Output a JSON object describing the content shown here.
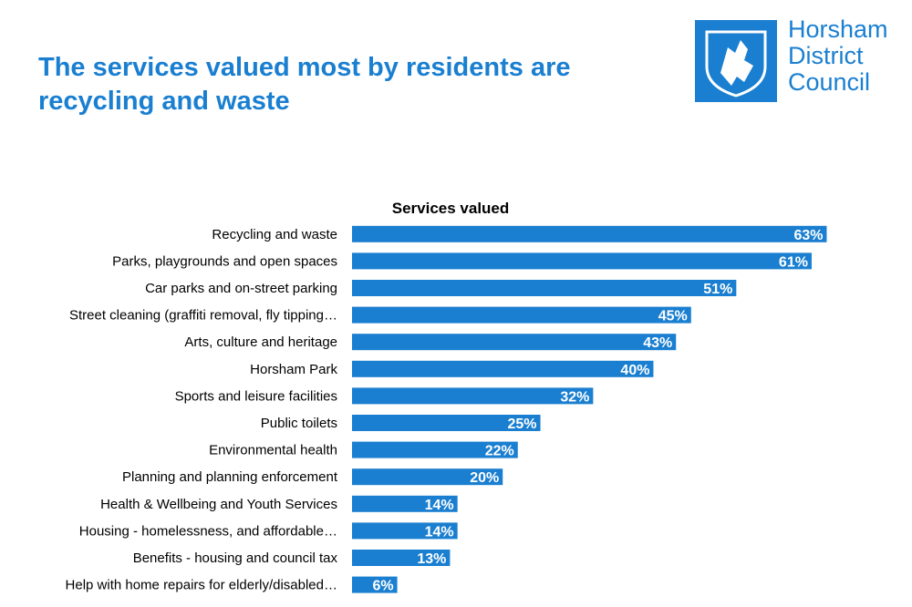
{
  "header": {
    "title": "The services valued most by residents are recycling and waste",
    "logo": [
      "Horsham",
      "District",
      "Council"
    ]
  },
  "chart_data": {
    "type": "bar",
    "orientation": "horizontal",
    "title": "Services valued",
    "categories": [
      "Recycling and waste",
      "Parks, playgrounds and open spaces",
      "Car parks and on-street parking",
      "Street cleaning (graffiti removal, fly tipping…",
      "Arts, culture and heritage",
      "Horsham Park",
      "Sports and leisure facilities",
      "Public toilets",
      "Environmental health",
      "Planning and planning enforcement",
      "Health & Wellbeing and Youth Services",
      "Housing - homelessness, and affordable…",
      "Benefits - housing and council tax",
      "Help with home repairs for elderly/disabled…"
    ],
    "values": [
      63,
      61,
      51,
      45,
      43,
      40,
      32,
      25,
      22,
      20,
      14,
      14,
      13,
      6
    ],
    "value_labels": [
      "63%",
      "61%",
      "51%",
      "45%",
      "43%",
      "40%",
      "32%",
      "25%",
      "22%",
      "20%",
      "14%",
      "14%",
      "13%",
      "6%"
    ],
    "color": "#1a7fd0",
    "xlim": [
      0,
      65
    ]
  }
}
